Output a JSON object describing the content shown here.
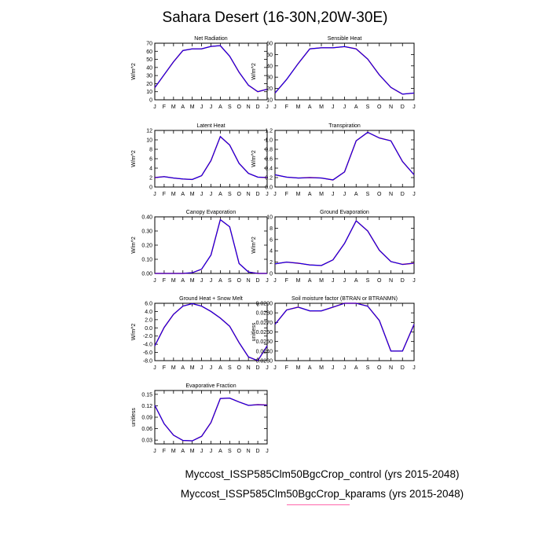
{
  "title": "Sahara Desert (16-30N,20W-30E)",
  "legend": [
    {
      "label": "Myccost_ISSP585Clm50BgcCrop_control (yrs 2015-2048)",
      "color": "#ff0000"
    },
    {
      "label": "Myccost_ISSP585Clm50BgcCrop_kparams (yrs 2015-2048)",
      "color": "#0000ff"
    }
  ],
  "colors": {
    "series_a": "#ff0000",
    "series_b": "#0000ff"
  },
  "chart_data": [
    {
      "type": "line",
      "title": "Net Radiation",
      "xlabel": "",
      "ylabel": "W/m^2",
      "categories": [
        "J",
        "F",
        "M",
        "A",
        "M",
        "J",
        "J",
        "A",
        "S",
        "O",
        "N",
        "D",
        "J"
      ],
      "ylim": [
        0,
        70
      ],
      "yticks": [
        "0",
        "10",
        "20",
        "30",
        "40",
        "50",
        "60",
        "70"
      ],
      "series": [
        {
          "values": [
            15,
            31,
            47,
            61,
            63,
            63,
            66,
            67,
            54,
            34,
            18,
            10,
            13
          ]
        }
      ]
    },
    {
      "type": "line",
      "title": "Sensible Heat",
      "xlabel": "",
      "ylabel": "W/m^2",
      "categories": [
        "J",
        "F",
        "M",
        "A",
        "M",
        "J",
        "J",
        "A",
        "S",
        "O",
        "N",
        "D",
        "J"
      ],
      "ylim": [
        10,
        60
      ],
      "yticks": [
        "10",
        "20",
        "30",
        "40",
        "50",
        "60"
      ],
      "series": [
        {
          "values": [
            16,
            28,
            42,
            55,
            56,
            56,
            57,
            55,
            46,
            32,
            21,
            15,
            16
          ]
        }
      ]
    },
    {
      "type": "line",
      "title": "Latent Heat",
      "xlabel": "",
      "ylabel": "W/m^2",
      "categories": [
        "J",
        "F",
        "M",
        "A",
        "M",
        "J",
        "J",
        "A",
        "S",
        "O",
        "N",
        "D",
        "J"
      ],
      "ylim": [
        0,
        12
      ],
      "yticks": [
        "0",
        "2",
        "4",
        "6",
        "8",
        "10",
        "12"
      ],
      "series": [
        {
          "values": [
            2.0,
            2.2,
            1.9,
            1.7,
            1.6,
            2.4,
            5.6,
            10.7,
            8.9,
            5.0,
            2.9,
            2.1,
            2.0
          ]
        }
      ]
    },
    {
      "type": "line",
      "title": "Transpiration",
      "xlabel": "",
      "ylabel": "W/m^2",
      "categories": [
        "J",
        "F",
        "M",
        "A",
        "M",
        "J",
        "J",
        "A",
        "S",
        "O",
        "N",
        "D",
        "J"
      ],
      "ylim": [
        0,
        1.2
      ],
      "yticks": [
        "0.0",
        "0.2",
        "0.4",
        "0.6",
        "0.8",
        "1.0",
        "1.2"
      ],
      "series": [
        {
          "values": [
            0.26,
            0.21,
            0.19,
            0.2,
            0.19,
            0.15,
            0.32,
            0.98,
            1.16,
            1.04,
            0.98,
            0.54,
            0.26
          ]
        }
      ]
    },
    {
      "type": "line",
      "title": "Canopy Evaporation",
      "xlabel": "",
      "ylabel": "W/m^2",
      "categories": [
        "J",
        "F",
        "M",
        "A",
        "M",
        "J",
        "J",
        "A",
        "S",
        "O",
        "N",
        "D",
        "J"
      ],
      "ylim": [
        0,
        0.4
      ],
      "yticks": [
        "0.00",
        "0.10",
        "0.20",
        "0.30",
        "0.40"
      ],
      "series": [
        {
          "values": [
            0.0,
            0.0,
            0.0,
            0.0,
            0.005,
            0.03,
            0.13,
            0.38,
            0.33,
            0.07,
            0.01,
            0.0,
            0.0
          ]
        }
      ]
    },
    {
      "type": "line",
      "title": "Ground Evaporation",
      "xlabel": "",
      "ylabel": "W/m^2",
      "categories": [
        "J",
        "F",
        "M",
        "A",
        "M",
        "J",
        "J",
        "A",
        "S",
        "O",
        "N",
        "D",
        "J"
      ],
      "ylim": [
        0,
        10
      ],
      "yticks": [
        "0",
        "2",
        "4",
        "6",
        "8",
        "10"
      ],
      "series": [
        {
          "values": [
            1.7,
            2.0,
            1.8,
            1.5,
            1.4,
            2.4,
            5.3,
            9.3,
            7.5,
            4.1,
            2.1,
            1.6,
            1.8
          ]
        }
      ]
    },
    {
      "type": "line",
      "title": "Ground Heat + Snow Melt",
      "xlabel": "",
      "ylabel": "W/m^2",
      "categories": [
        "J",
        "F",
        "M",
        "A",
        "M",
        "J",
        "J",
        "A",
        "S",
        "O",
        "N",
        "D",
        "J"
      ],
      "ylim": [
        -8,
        6
      ],
      "yticks": [
        "-8.0",
        "-6.0",
        "-4.0",
        "-2.0",
        "0.0",
        "2.0",
        "4.0",
        "6.0"
      ],
      "series": [
        {
          "values": [
            -4.4,
            0.1,
            3.3,
            5.3,
            5.9,
            5.3,
            4.0,
            2.4,
            0.4,
            -3.6,
            -7.1,
            -8.0,
            -4.4
          ]
        }
      ]
    },
    {
      "type": "line",
      "title": "Soil moisture factor (BTRAN or BTRANMN)",
      "xlabel": "",
      "ylabel": "unitless",
      "categories": [
        "J",
        "F",
        "M",
        "A",
        "M",
        "J",
        "J",
        "A",
        "S",
        "O",
        "N",
        "D",
        "J"
      ],
      "ylim": [
        0.023,
        0.029
      ],
      "yticks": [
        "0.0230",
        "0.0240",
        "0.0250",
        "0.0260",
        "0.0270",
        "0.0280",
        "0.0290"
      ],
      "series": [
        {
          "values": [
            0.0268,
            0.0283,
            0.0286,
            0.0282,
            0.0282,
            0.0286,
            0.029,
            0.029,
            0.0287,
            0.0272,
            0.024,
            0.024,
            0.0268
          ]
        }
      ]
    },
    {
      "type": "line",
      "title": "Evaporative Fraction",
      "xlabel": "",
      "ylabel": "unitless",
      "categories": [
        "J",
        "F",
        "M",
        "A",
        "M",
        "J",
        "J",
        "A",
        "S",
        "O",
        "N",
        "D",
        "J"
      ],
      "ylim": [
        0.02,
        0.16
      ],
      "yticks": [
        "0.03",
        "0.06",
        "0.09",
        "0.12",
        "0.15"
      ],
      "ytick_values": [
        0.03,
        0.06,
        0.09,
        0.12,
        0.15
      ],
      "series": [
        {
          "values": [
            0.121,
            0.073,
            0.043,
            0.029,
            0.028,
            0.04,
            0.076,
            0.139,
            0.14,
            0.13,
            0.121,
            0.123,
            0.122
          ]
        }
      ]
    }
  ]
}
